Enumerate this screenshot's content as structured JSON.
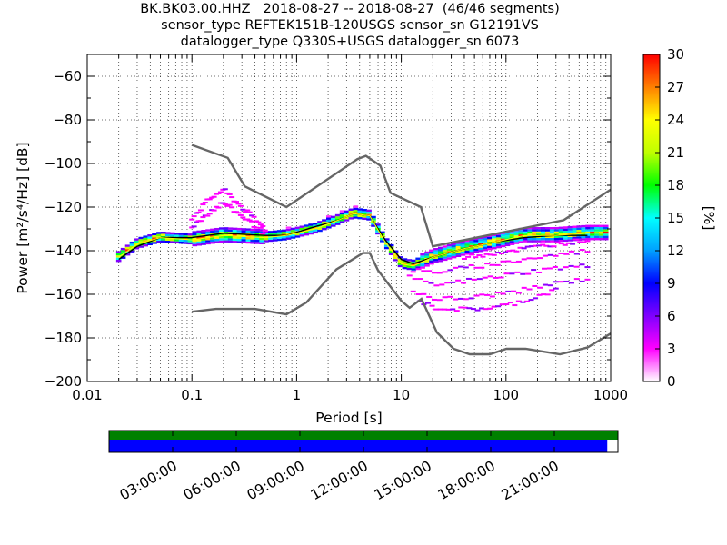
{
  "title": {
    "line1": "BK.BK03.00.HHZ   2018-08-27 -- 2018-08-27  (46/46 segments)",
    "line2": "sensor_type REFTEK151B-120USGS sensor_sn G12191VS",
    "line3": "datalogger_type Q330S+USGS datalogger_sn 6073"
  },
  "chart_data": [
    {
      "type": "heatmap",
      "name": "PPSD",
      "xlabel": "Period [s]",
      "ylabel": "Power [m²/s⁴/Hz] [dB]",
      "xscale": "log",
      "xlim": [
        0.01,
        1000
      ],
      "ylim": [
        -200,
        -50
      ],
      "x_ticks": [
        "0.01",
        "0.1",
        "1",
        "10",
        "100",
        "1000"
      ],
      "y_ticks": [
        "−60",
        "−80",
        "−100",
        "−120",
        "−140",
        "−160",
        "−180",
        "−200"
      ],
      "y_tick_values": [
        -60,
        -80,
        -100,
        -120,
        -140,
        -160,
        -180,
        -200
      ],
      "grid": true,
      "colorbar": {
        "label": "[%]",
        "range": [
          0,
          30
        ],
        "ticks": [
          "30",
          "27",
          "24",
          "21",
          "18",
          "15",
          "12",
          "9",
          "6",
          "3",
          "0"
        ],
        "colormap": [
          "#ffffff",
          "#ff00ff",
          "#8000ff",
          "#0000ff",
          "#00a0ff",
          "#00ffff",
          "#00ff00",
          "#c0ff00",
          "#ffff00",
          "#ff8000",
          "#ff0000"
        ]
      },
      "mode_curve": {
        "period": [
          0.02,
          0.03,
          0.05,
          0.1,
          0.2,
          0.5,
          0.8,
          1.5,
          2.5,
          3.5,
          5,
          7,
          10,
          13,
          20,
          40,
          80,
          150,
          300,
          600
        ],
        "power": [
          -143,
          -137,
          -134,
          -135,
          -133,
          -134,
          -133,
          -130,
          -126,
          -123,
          -124,
          -136,
          -146,
          -147,
          -143,
          -139,
          -136,
          -133,
          -133,
          -132
        ]
      },
      "mean_curve": {
        "period": [
          0.02,
          0.03,
          0.05,
          0.1,
          0.2,
          0.5,
          0.8,
          1.5,
          2.5,
          3.5,
          5,
          7,
          10,
          13,
          20,
          40,
          80,
          150,
          300,
          600
        ],
        "power": [
          -144,
          -138,
          -134,
          -134,
          -132,
          -133,
          -133,
          -129,
          -126,
          -123,
          -124,
          -135,
          -144,
          -146,
          -143,
          -139,
          -136,
          -134,
          -133,
          -133
        ]
      },
      "nhnm": {
        "period": [
          0.1,
          0.22,
          0.32,
          0.8,
          3.8,
          4.6,
          6.3,
          7.9,
          15.4,
          20,
          354.8,
          1000
        ],
        "power": [
          -91.5,
          -97.4,
          -110.5,
          -120,
          -98,
          -96.5,
          -101,
          -113.5,
          -120,
          -138,
          -126,
          -112
        ]
      },
      "nlnm": {
        "period": [
          0.1,
          0.17,
          0.4,
          0.8,
          1.24,
          2.4,
          4.3,
          5,
          6,
          10,
          12,
          15.6,
          21.9,
          31.6,
          45,
          70,
          101,
          154,
          328,
          600,
          1000
        ],
        "power": [
          -168,
          -166.7,
          -166.7,
          -169.2,
          -163.7,
          -148.6,
          -141.1,
          -141.1,
          -149,
          -163,
          -166.2,
          -162.1,
          -177.5,
          -185,
          -187.5,
          -187.5,
          -185,
          -185,
          -187.5,
          -184.4,
          -178
        ]
      },
      "scatter_curves": [
        {
          "period": [
            0.1,
            0.15,
            0.2,
            0.3,
            0.5
          ],
          "power": [
            -125,
            -116,
            -112,
            -120,
            -130
          ]
        },
        {
          "period": [
            0.1,
            0.15,
            0.2,
            0.3,
            0.5
          ],
          "power": [
            -129,
            -122,
            -118,
            -124,
            -132
          ]
        },
        {
          "period": [
            12,
            20,
            40,
            80,
            150,
            300,
            600
          ],
          "power": [
            -152,
            -156,
            -154,
            -152,
            -150,
            -148,
            -147
          ]
        },
        {
          "period": [
            13,
            20,
            40,
            80,
            150,
            300,
            600
          ],
          "power": [
            -158,
            -162,
            -162,
            -160,
            -158,
            -155,
            -153
          ]
        },
        {
          "period": [
            15,
            20,
            40,
            80,
            150,
            300
          ],
          "power": [
            -163,
            -166,
            -167,
            -166,
            -163,
            -158
          ]
        },
        {
          "period": [
            13,
            20,
            40,
            80,
            150,
            300,
            600
          ],
          "power": [
            -149,
            -150,
            -148,
            -146,
            -144,
            -142,
            -140
          ]
        },
        {
          "period": [
            40,
            80,
            150,
            300,
            600
          ],
          "power": [
            -143,
            -141,
            -139,
            -137,
            -135
          ]
        }
      ]
    },
    {
      "type": "timeline",
      "name": "data availability",
      "x_ticks": [
        "03:00:00",
        "06:00:00",
        "09:00:00",
        "12:00:00",
        "15:00:00",
        "18:00:00",
        "21:00:00"
      ],
      "bars": [
        {
          "color": "#008000",
          "start": 0,
          "end": 1.0
        },
        {
          "color": "#0000ff",
          "start": 0,
          "end": 0.979
        }
      ]
    }
  ]
}
